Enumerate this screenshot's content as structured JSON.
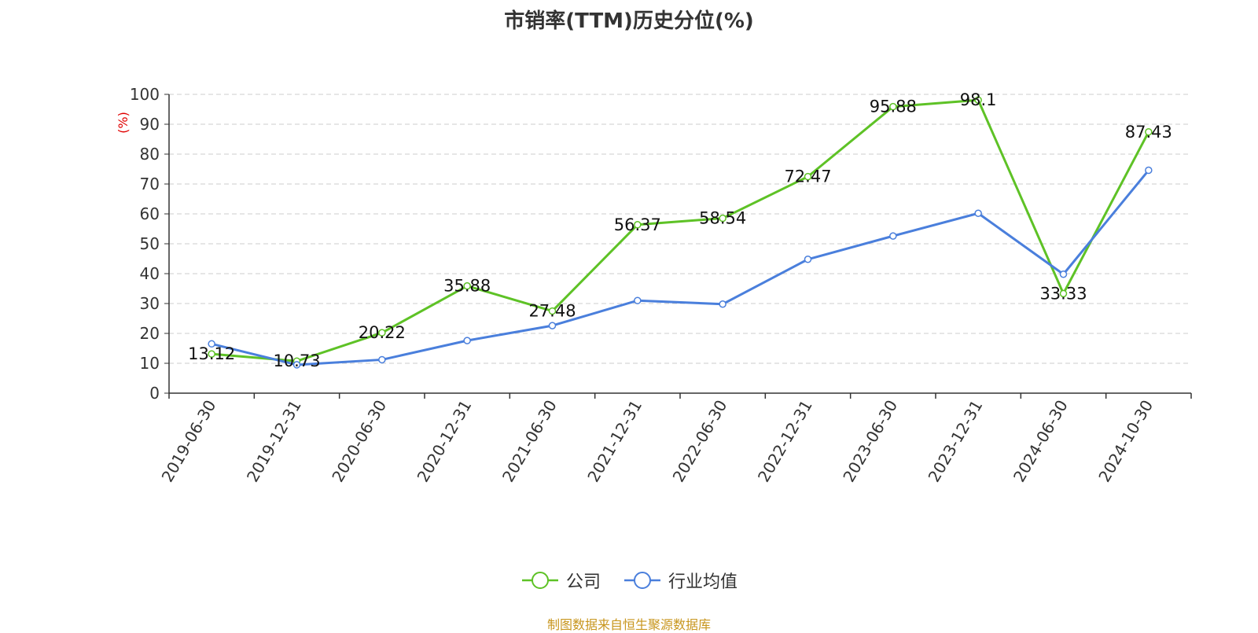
{
  "title": "市销率(TTM)历史分位(%)",
  "source_note": "制图数据来自恒生聚源数据库",
  "chart_data": {
    "type": "line",
    "title": "市销率(TTM)历史分位(%)",
    "ylabel": "(%)",
    "xlabel": "",
    "ylim": [
      0,
      100
    ],
    "yticks": [
      0,
      10,
      20,
      30,
      40,
      50,
      60,
      70,
      80,
      90,
      100
    ],
    "grid": true,
    "legend_position": "bottom",
    "categories": [
      "2019-06-30",
      "2019-12-31",
      "2020-06-30",
      "2020-12-31",
      "2021-06-30",
      "2021-12-31",
      "2022-06-30",
      "2022-12-31",
      "2023-06-30",
      "2023-12-31",
      "2024-06-30",
      "2024-10-30"
    ],
    "series": [
      {
        "name": "公司",
        "color": "#5ec226",
        "show_labels": true,
        "labels": [
          "13.12",
          "10.73",
          "20.22",
          "35.88",
          "27.48",
          "56.37",
          "58.54",
          "72.47",
          "95.88",
          "98.1",
          "33.33",
          "87.43"
        ],
        "values": [
          13.12,
          10.73,
          20.22,
          35.88,
          27.48,
          56.37,
          58.54,
          72.47,
          95.88,
          98.1,
          33.33,
          87.43
        ]
      },
      {
        "name": "行业均值",
        "color": "#4a7fdc",
        "show_labels": false,
        "values": [
          16.5,
          9.5,
          11.2,
          17.6,
          22.6,
          31.0,
          29.8,
          44.8,
          52.6,
          60.2,
          39.8,
          74.6
        ]
      }
    ]
  }
}
